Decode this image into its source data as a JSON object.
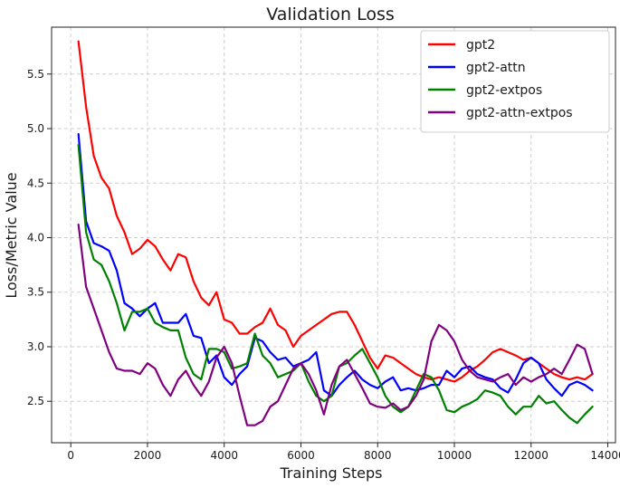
{
  "chart_data": {
    "type": "line",
    "title": "Validation Loss",
    "xlabel": "Training Steps",
    "ylabel": "Loss/Metric Value",
    "xlim": [
      -500,
      14200
    ],
    "ylim": [
      2.12,
      5.93
    ],
    "xticks": [
      0,
      2000,
      4000,
      6000,
      8000,
      10000,
      12000,
      14000
    ],
    "yticks": [
      2.5,
      3.0,
      3.5,
      4.0,
      4.5,
      5.0,
      5.5
    ],
    "grid": true,
    "legend_position": "top-right",
    "series": [
      {
        "name": "gpt2",
        "color": "#ff0000",
        "x": [
          200,
          400,
          600,
          800,
          1000,
          1200,
          1400,
          1600,
          1800,
          2000,
          2200,
          2400,
          2600,
          2800,
          3000,
          3200,
          3400,
          3600,
          3800,
          4000,
          4200,
          4400,
          4600,
          4800,
          5000,
          5200,
          5400,
          5600,
          5800,
          6000,
          6200,
          6400,
          6600,
          6800,
          7000,
          7200,
          7400,
          7600,
          7800,
          8000,
          8200,
          8400,
          8600,
          8800,
          9000,
          9200,
          9400,
          9600,
          9800,
          10000,
          10200,
          10400,
          10600,
          10800,
          11000,
          11200,
          11400,
          11600,
          11800,
          12000,
          12200,
          12400,
          12600,
          12800,
          13000,
          13200,
          13400,
          13600
        ],
        "values": [
          5.8,
          5.2,
          4.75,
          4.55,
          4.45,
          4.2,
          4.05,
          3.85,
          3.9,
          3.98,
          3.92,
          3.8,
          3.7,
          3.85,
          3.82,
          3.6,
          3.45,
          3.38,
          3.5,
          3.25,
          3.22,
          3.12,
          3.12,
          3.18,
          3.22,
          3.35,
          3.2,
          3.15,
          3.0,
          3.1,
          3.15,
          3.2,
          3.25,
          3.3,
          3.32,
          3.32,
          3.2,
          3.05,
          2.9,
          2.8,
          2.92,
          2.9,
          2.85,
          2.8,
          2.75,
          2.72,
          2.7,
          2.72,
          2.7,
          2.68,
          2.72,
          2.78,
          2.82,
          2.88,
          2.95,
          2.98,
          2.95,
          2.92,
          2.88,
          2.9,
          2.85,
          2.8,
          2.75,
          2.72,
          2.7,
          2.72,
          2.7,
          2.75
        ]
      },
      {
        "name": "gpt2-attn",
        "color": "#0000ff",
        "x": [
          200,
          400,
          600,
          800,
          1000,
          1200,
          1400,
          1600,
          1800,
          2000,
          2200,
          2400,
          2600,
          2800,
          3000,
          3200,
          3400,
          3600,
          3800,
          4000,
          4200,
          4400,
          4600,
          4800,
          5000,
          5200,
          5400,
          5600,
          5800,
          6000,
          6200,
          6400,
          6600,
          6800,
          7000,
          7200,
          7400,
          7600,
          7800,
          8000,
          8200,
          8400,
          8600,
          8800,
          9000,
          9200,
          9400,
          9600,
          9800,
          10000,
          10200,
          10400,
          10600,
          10800,
          11000,
          11200,
          11400,
          11600,
          11800,
          12000,
          12200,
          12400,
          12600,
          12800,
          13000,
          13200,
          13400,
          13600
        ],
        "values": [
          4.95,
          4.15,
          3.95,
          3.92,
          3.88,
          3.7,
          3.4,
          3.35,
          3.28,
          3.35,
          3.4,
          3.22,
          3.22,
          3.22,
          3.3,
          3.1,
          3.08,
          2.85,
          2.92,
          2.72,
          2.65,
          2.75,
          2.82,
          3.08,
          3.05,
          2.95,
          2.88,
          2.9,
          2.82,
          2.85,
          2.88,
          2.95,
          2.6,
          2.55,
          2.65,
          2.72,
          2.78,
          2.7,
          2.65,
          2.62,
          2.68,
          2.72,
          2.6,
          2.62,
          2.6,
          2.62,
          2.65,
          2.65,
          2.78,
          2.72,
          2.8,
          2.82,
          2.75,
          2.72,
          2.7,
          2.62,
          2.58,
          2.7,
          2.85,
          2.9,
          2.85,
          2.7,
          2.62,
          2.55,
          2.65,
          2.68,
          2.65,
          2.6
        ]
      },
      {
        "name": "gpt2-extpos",
        "color": "#008000",
        "x": [
          200,
          400,
          600,
          800,
          1000,
          1200,
          1400,
          1600,
          1800,
          2000,
          2200,
          2400,
          2600,
          2800,
          3000,
          3200,
          3400,
          3600,
          3800,
          4000,
          4200,
          4400,
          4600,
          4800,
          5000,
          5200,
          5400,
          5600,
          5800,
          6000,
          6200,
          6400,
          6600,
          6800,
          7000,
          7200,
          7400,
          7600,
          7800,
          8000,
          8200,
          8400,
          8600,
          8800,
          9000,
          9200,
          9400,
          9600,
          9800,
          10000,
          10200,
          10400,
          10600,
          10800,
          11000,
          11200,
          11400,
          11600,
          11800,
          12000,
          12200,
          12400,
          12600,
          12800,
          13000,
          13200,
          13400,
          13600
        ],
        "values": [
          4.85,
          4.05,
          3.8,
          3.75,
          3.6,
          3.4,
          3.15,
          3.32,
          3.32,
          3.35,
          3.22,
          3.18,
          3.15,
          3.15,
          2.9,
          2.75,
          2.7,
          2.98,
          2.98,
          2.95,
          2.8,
          2.82,
          2.85,
          3.12,
          2.92,
          2.85,
          2.72,
          2.75,
          2.78,
          2.85,
          2.68,
          2.55,
          2.5,
          2.55,
          2.82,
          2.85,
          2.92,
          2.98,
          2.85,
          2.72,
          2.55,
          2.45,
          2.4,
          2.45,
          2.6,
          2.75,
          2.72,
          2.6,
          2.42,
          2.4,
          2.45,
          2.48,
          2.52,
          2.6,
          2.58,
          2.55,
          2.45,
          2.38,
          2.45,
          2.45,
          2.55,
          2.48,
          2.5,
          2.42,
          2.35,
          2.3,
          2.38,
          2.45
        ]
      },
      {
        "name": "gpt2-attn-extpos",
        "color": "#800080",
        "x": [
          200,
          400,
          600,
          800,
          1000,
          1200,
          1400,
          1600,
          1800,
          2000,
          2200,
          2400,
          2600,
          2800,
          3000,
          3200,
          3400,
          3600,
          3800,
          4000,
          4200,
          4400,
          4600,
          4800,
          5000,
          5200,
          5400,
          5600,
          5800,
          6000,
          6200,
          6400,
          6600,
          6800,
          7000,
          7200,
          7400,
          7600,
          7800,
          8000,
          8200,
          8400,
          8600,
          8800,
          9000,
          9200,
          9400,
          9600,
          9800,
          10000,
          10200,
          10400,
          10600,
          10800,
          11000,
          11200,
          11400,
          11600,
          11800,
          12000,
          12200,
          12400,
          12600,
          12800,
          13000,
          13200,
          13400,
          13600
        ],
        "values": [
          4.12,
          3.55,
          3.35,
          3.15,
          2.95,
          2.8,
          2.78,
          2.78,
          2.75,
          2.85,
          2.8,
          2.65,
          2.55,
          2.7,
          2.78,
          2.65,
          2.55,
          2.68,
          2.9,
          3.0,
          2.85,
          2.55,
          2.28,
          2.28,
          2.32,
          2.45,
          2.5,
          2.65,
          2.8,
          2.85,
          2.75,
          2.6,
          2.38,
          2.65,
          2.82,
          2.88,
          2.75,
          2.62,
          2.48,
          2.45,
          2.44,
          2.48,
          2.42,
          2.45,
          2.55,
          2.7,
          3.05,
          3.2,
          3.15,
          3.05,
          2.88,
          2.78,
          2.72,
          2.7,
          2.68,
          2.72,
          2.75,
          2.65,
          2.72,
          2.68,
          2.72,
          2.75,
          2.8,
          2.75,
          2.88,
          3.02,
          2.98,
          2.75
        ]
      }
    ]
  }
}
